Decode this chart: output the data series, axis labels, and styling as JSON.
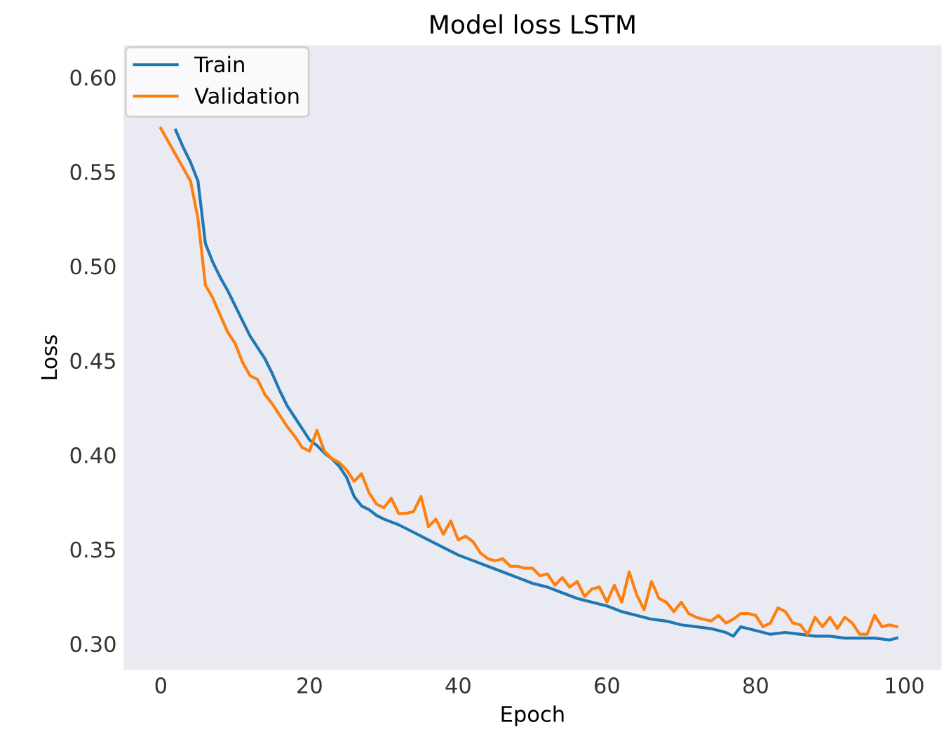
{
  "chart_data": {
    "type": "line",
    "title": "Model loss LSTM",
    "xlabel": "Epoch",
    "ylabel": "Loss",
    "xlim": [
      -5,
      105
    ],
    "ylim": [
      0.286,
      0.617
    ],
    "xticks": [
      0,
      20,
      40,
      60,
      80,
      100
    ],
    "yticks": [
      {
        "value": 0.3,
        "label": "0.30"
      },
      {
        "value": 0.35,
        "label": "0.35"
      },
      {
        "value": 0.4,
        "label": "0.40"
      },
      {
        "value": 0.45,
        "label": "0.45"
      },
      {
        "value": 0.5,
        "label": "0.50"
      },
      {
        "value": 0.55,
        "label": "0.55"
      },
      {
        "value": 0.6,
        "label": "0.60"
      }
    ],
    "grid": false,
    "legend": "top left",
    "marker": "none",
    "line_style": "solid",
    "series": [
      {
        "name": "Train",
        "color": "#1f77b4",
        "x": [
          2,
          3,
          4,
          5,
          6,
          7,
          8,
          9,
          10,
          11,
          12,
          13,
          14,
          15,
          16,
          17,
          18,
          19,
          20,
          21,
          22,
          23,
          24,
          25,
          26,
          27,
          28,
          29,
          30,
          32,
          34,
          36,
          38,
          40,
          42,
          44,
          46,
          48,
          50,
          52,
          54,
          56,
          58,
          60,
          62,
          64,
          66,
          68,
          70,
          72,
          74,
          76,
          77,
          78,
          80,
          82,
          84,
          86,
          88,
          90,
          92,
          94,
          96,
          98,
          99
        ],
        "values": [
          0.572,
          0.563,
          0.555,
          0.545,
          0.512,
          0.502,
          0.494,
          0.487,
          0.479,
          0.471,
          0.463,
          0.457,
          0.451,
          0.443,
          0.434,
          0.426,
          0.42,
          0.414,
          0.408,
          0.405,
          0.401,
          0.398,
          0.394,
          0.388,
          0.378,
          0.373,
          0.371,
          0.368,
          0.366,
          0.363,
          0.359,
          0.355,
          0.351,
          0.347,
          0.344,
          0.341,
          0.338,
          0.335,
          0.332,
          0.33,
          0.327,
          0.324,
          0.322,
          0.32,
          0.317,
          0.315,
          0.313,
          0.312,
          0.31,
          0.309,
          0.308,
          0.306,
          0.304,
          0.309,
          0.307,
          0.305,
          0.306,
          0.305,
          0.304,
          0.304,
          0.303,
          0.303,
          0.303,
          0.302,
          0.303
        ]
      },
      {
        "name": "Validation",
        "color": "#ff7f0e",
        "x": [
          0,
          1,
          2,
          3,
          4,
          5,
          6,
          7,
          8,
          9,
          10,
          11,
          12,
          13,
          14,
          15,
          16,
          17,
          18,
          19,
          20,
          21,
          22,
          23,
          24,
          25,
          26,
          27,
          28,
          29,
          30,
          31,
          32,
          33,
          34,
          35,
          36,
          37,
          38,
          39,
          40,
          41,
          42,
          43,
          44,
          45,
          46,
          47,
          48,
          49,
          50,
          51,
          52,
          53,
          54,
          55,
          56,
          57,
          58,
          59,
          60,
          61,
          62,
          63,
          64,
          65,
          66,
          67,
          68,
          69,
          70,
          71,
          72,
          73,
          74,
          75,
          76,
          77,
          78,
          79,
          80,
          81,
          82,
          83,
          84,
          85,
          86,
          87,
          88,
          89,
          90,
          91,
          92,
          93,
          94,
          95,
          96,
          97,
          98,
          99
        ],
        "values": [
          0.573,
          0.566,
          0.559,
          0.552,
          0.545,
          0.525,
          0.49,
          0.483,
          0.474,
          0.465,
          0.459,
          0.449,
          0.442,
          0.44,
          0.432,
          0.427,
          0.421,
          0.415,
          0.41,
          0.404,
          0.402,
          0.413,
          0.402,
          0.398,
          0.396,
          0.392,
          0.386,
          0.39,
          0.38,
          0.374,
          0.372,
          0.377,
          0.369,
          0.369,
          0.37,
          0.378,
          0.362,
          0.366,
          0.358,
          0.365,
          0.355,
          0.357,
          0.354,
          0.348,
          0.345,
          0.344,
          0.345,
          0.341,
          0.341,
          0.34,
          0.34,
          0.336,
          0.337,
          0.331,
          0.335,
          0.33,
          0.333,
          0.325,
          0.329,
          0.33,
          0.322,
          0.331,
          0.322,
          0.338,
          0.326,
          0.318,
          0.333,
          0.324,
          0.322,
          0.317,
          0.322,
          0.316,
          0.314,
          0.313,
          0.312,
          0.315,
          0.311,
          0.313,
          0.316,
          0.316,
          0.315,
          0.309,
          0.311,
          0.319,
          0.317,
          0.311,
          0.31,
          0.305,
          0.314,
          0.309,
          0.314,
          0.308,
          0.314,
          0.311,
          0.305,
          0.305,
          0.315,
          0.309,
          0.31,
          0.309
        ]
      }
    ]
  }
}
